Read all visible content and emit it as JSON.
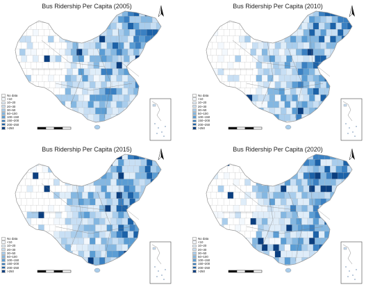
{
  "panels": [
    {
      "title": "Bus Ridership Per Capita (2005)"
    },
    {
      "title": "Bus Ridership Per Capita (2010)"
    },
    {
      "title": "Bus Ridership Per Capita (2015)"
    },
    {
      "title": "Bus Ridership Per Capita (2020)"
    }
  ],
  "legend": [
    {
      "label": "No data",
      "color": "#ffffff"
    },
    {
      "label": "<10",
      "color": "#f3f8fd"
    },
    {
      "label": "10~20",
      "color": "#dfedf9"
    },
    {
      "label": "20~30",
      "color": "#c8dff4"
    },
    {
      "label": "30~50",
      "color": "#a9cdec"
    },
    {
      "label": "50~100",
      "color": "#84b7e1"
    },
    {
      "label": "100~150",
      "color": "#5b9dd4"
    },
    {
      "label": "150~200",
      "color": "#3a80c2"
    },
    {
      "label": "200~250",
      "color": "#1c62a8"
    },
    {
      "label": ">250",
      "color": "#0b3f80"
    }
  ],
  "colors": {
    "border": "#9a9a9a",
    "province_border": "#777777",
    "background": "#ffffff"
  }
}
